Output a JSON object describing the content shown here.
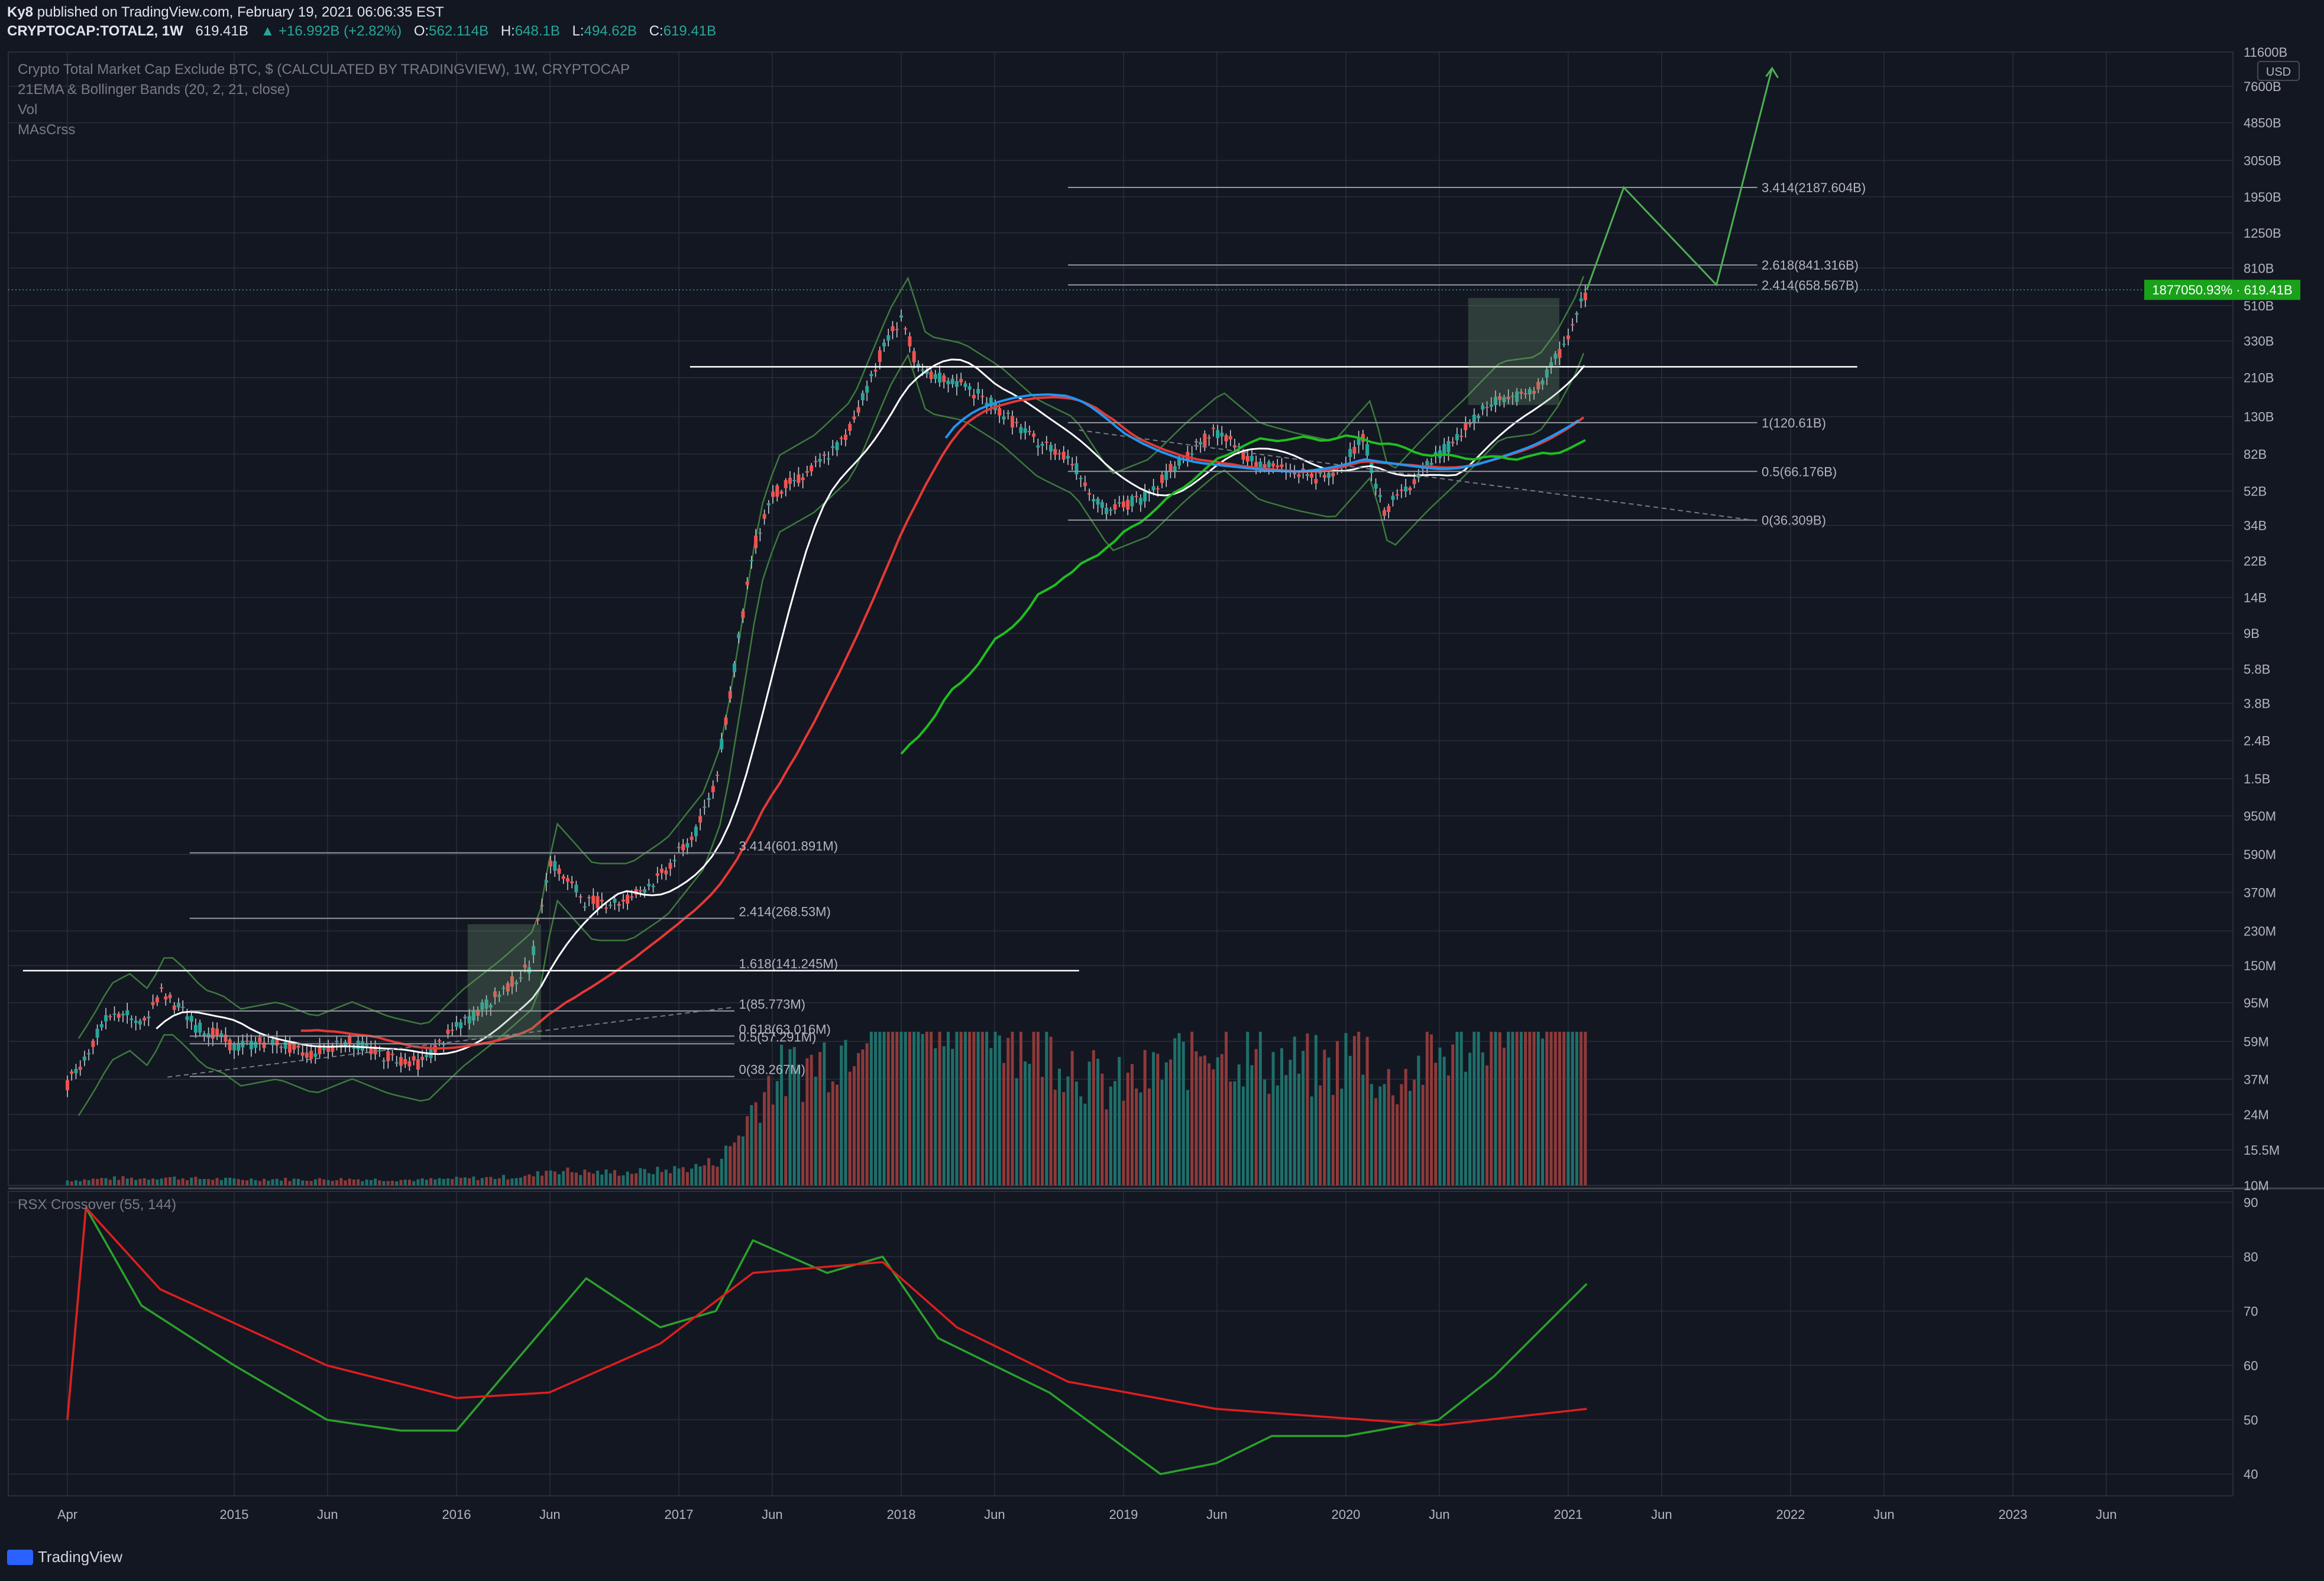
{
  "header": {
    "author": "Ky8",
    "published": "published on TradingView.com, February 19, 2021 06:06:35 EST",
    "symbol": "CRYPTOCAP:TOTAL2, 1W",
    "last": "619.41B",
    "change": "+16.992B (+2.82%)",
    "open_label": "O:",
    "open": "562.114B",
    "high_label": "H:",
    "high": "648.1B",
    "low_label": "L:",
    "low": "494.62B",
    "close_label": "C:",
    "close": "619.41B"
  },
  "legend": {
    "title": "Crypto Total Market Cap Exclude BTC, $ (CALCULATED BY TRADINGVIEW), 1W, CRYPTOCAP",
    "ind1": "21EMA & Bollinger Bands (20, 2, 21, close)",
    "ind2": "Vol",
    "ind3": "MAsCrss",
    "rsx": "RSX Crossover (55, 144)"
  },
  "footer": {
    "brand": "TradingView"
  },
  "colors": {
    "bg": "#131722",
    "grid": "#2a2e39",
    "up": "#26a69a",
    "down": "#ef5350",
    "ema": "#ffffff",
    "blue": "#2196f3",
    "red": "#e53935",
    "green": "#1fbf1f",
    "bb": "#3c7a3c",
    "arrow": "#4caf50"
  },
  "chart_data": {
    "type": "line",
    "x_ticks": [
      "Apr",
      "2015",
      "Jun",
      "2016",
      "Jun",
      "2017",
      "Jun",
      "2018",
      "Jun",
      "2019",
      "Jun",
      "2020",
      "Jun",
      "2021",
      "Jun",
      "2022",
      "Jun",
      "2023",
      "Jun"
    ],
    "y_axis_unit": "USD",
    "y_scale": "log",
    "y_ticks": [
      "11600B",
      "7600B",
      "4850B",
      "3050B",
      "1950B",
      "1250B",
      "810B",
      "510B",
      "330B",
      "210B",
      "130B",
      "82B",
      "52B",
      "34B",
      "22B",
      "14B",
      "9B",
      "5.8B",
      "3.8B",
      "2.4B",
      "1.5B",
      "950M",
      "590M",
      "370M",
      "230M",
      "150M",
      "95M",
      "59M",
      "37M",
      "24M",
      "15.5M",
      "10M"
    ],
    "price_label": "1877050.93% · 619.41B",
    "fib_levels_2017": [
      "3.414(601.891M)",
      "2.414(268.53M)",
      "1.618(141.245M)",
      "1(85.773M)",
      "0.618(63.016M)",
      "0.5(57.291M)",
      "0(38.267M)"
    ],
    "fib_levels_2021": [
      "3.414(2187.604B)",
      "2.618(841.316B)",
      "2.414(658.567B)",
      "1(120.61B)",
      "0.5(66.176B)",
      "0(36.309B)"
    ],
    "price_series": [
      {
        "t": "2014-04",
        "v": 0.035
      },
      {
        "t": "2014-05",
        "v": 0.05
      },
      {
        "t": "2014-06",
        "v": 0.075
      },
      {
        "t": "2014-07",
        "v": 0.085
      },
      {
        "t": "2014-08",
        "v": 0.07
      },
      {
        "t": "2014-09",
        "v": 0.11
      },
      {
        "t": "2014-10",
        "v": 0.09
      },
      {
        "t": "2014-11",
        "v": 0.07
      },
      {
        "t": "2014-12",
        "v": 0.065
      },
      {
        "t": "2015-01",
        "v": 0.055
      },
      {
        "t": "2015-03",
        "v": 0.06
      },
      {
        "t": "2015-05",
        "v": 0.05
      },
      {
        "t": "2015-07",
        "v": 0.06
      },
      {
        "t": "2015-09",
        "v": 0.05
      },
      {
        "t": "2015-11",
        "v": 0.045
      },
      {
        "t": "2016-01",
        "v": 0.07
      },
      {
        "t": "2016-03",
        "v": 0.1
      },
      {
        "t": "2016-05",
        "v": 0.15
      },
      {
        "t": "2016-06",
        "v": 0.55
      },
      {
        "t": "2016-08",
        "v": 0.33
      },
      {
        "t": "2016-10",
        "v": 0.33
      },
      {
        "t": "2016-12",
        "v": 0.45
      },
      {
        "t": "2017-02",
        "v": 0.8
      },
      {
        "t": "2017-03",
        "v": 1.5
      },
      {
        "t": "2017-04",
        "v": 6
      },
      {
        "t": "2017-05",
        "v": 25
      },
      {
        "t": "2017-06",
        "v": 50
      },
      {
        "t": "2017-08",
        "v": 65
      },
      {
        "t": "2017-10",
        "v": 100
      },
      {
        "t": "2017-12",
        "v": 300
      },
      {
        "t": "2018-01",
        "v": 450
      },
      {
        "t": "2018-02",
        "v": 220
      },
      {
        "t": "2018-04",
        "v": 200
      },
      {
        "t": "2018-06",
        "v": 150
      },
      {
        "t": "2018-08",
        "v": 100
      },
      {
        "t": "2018-10",
        "v": 80
      },
      {
        "t": "2018-12",
        "v": 40
      },
      {
        "t": "2019-02",
        "v": 48
      },
      {
        "t": "2019-04",
        "v": 75
      },
      {
        "t": "2019-06",
        "v": 110
      },
      {
        "t": "2019-08",
        "v": 75
      },
      {
        "t": "2019-10",
        "v": 66
      },
      {
        "t": "2019-12",
        "v": 60
      },
      {
        "t": "2020-02",
        "v": 100
      },
      {
        "t": "2020-03",
        "v": 40
      },
      {
        "t": "2020-05",
        "v": 65
      },
      {
        "t": "2020-07",
        "v": 100
      },
      {
        "t": "2020-09",
        "v": 160
      },
      {
        "t": "2020-11",
        "v": 170
      },
      {
        "t": "2020-12",
        "v": 230
      },
      {
        "t": "2021-01",
        "v": 350
      },
      {
        "t": "2021-02",
        "v": 619.41
      }
    ],
    "projection": [
      {
        "t": "2021-02",
        "v": 619.41
      },
      {
        "t": "2021-04",
        "v": 2187.6
      },
      {
        "t": "2021-09",
        "v": 658.6
      },
      {
        "t": "2021-12",
        "v": 9500
      }
    ],
    "rsx_y_ticks": [
      90,
      80,
      70,
      60,
      50,
      40
    ],
    "rsx_fast": [
      {
        "t": "2014-04",
        "v": 50
      },
      {
        "t": "2014-05",
        "v": 89
      },
      {
        "t": "2014-08",
        "v": 71
      },
      {
        "t": "2015-01",
        "v": 60
      },
      {
        "t": "2015-06",
        "v": 50
      },
      {
        "t": "2015-10",
        "v": 48
      },
      {
        "t": "2016-01",
        "v": 48
      },
      {
        "t": "2016-04",
        "v": 60
      },
      {
        "t": "2016-08",
        "v": 76
      },
      {
        "t": "2016-12",
        "v": 67
      },
      {
        "t": "2017-03",
        "v": 70
      },
      {
        "t": "2017-05",
        "v": 83
      },
      {
        "t": "2017-09",
        "v": 77
      },
      {
        "t": "2017-12",
        "v": 80
      },
      {
        "t": "2018-03",
        "v": 65
      },
      {
        "t": "2018-09",
        "v": 55
      },
      {
        "t": "2019-03",
        "v": 40
      },
      {
        "t": "2019-06",
        "v": 42
      },
      {
        "t": "2019-09",
        "v": 47
      },
      {
        "t": "2020-01",
        "v": 47
      },
      {
        "t": "2020-06",
        "v": 50
      },
      {
        "t": "2020-09",
        "v": 58
      },
      {
        "t": "2021-02",
        "v": 75
      }
    ],
    "rsx_slow": [
      {
        "t": "2014-04",
        "v": 50
      },
      {
        "t": "2014-05",
        "v": 89
      },
      {
        "t": "2014-09",
        "v": 74
      },
      {
        "t": "2015-06",
        "v": 60
      },
      {
        "t": "2016-01",
        "v": 54
      },
      {
        "t": "2016-06",
        "v": 55
      },
      {
        "t": "2016-12",
        "v": 64
      },
      {
        "t": "2017-05",
        "v": 77
      },
      {
        "t": "2017-12",
        "v": 79
      },
      {
        "t": "2018-04",
        "v": 67
      },
      {
        "t": "2018-10",
        "v": 57
      },
      {
        "t": "2019-06",
        "v": 52
      },
      {
        "t": "2020-06",
        "v": 49
      },
      {
        "t": "2021-02",
        "v": 52
      }
    ]
  }
}
